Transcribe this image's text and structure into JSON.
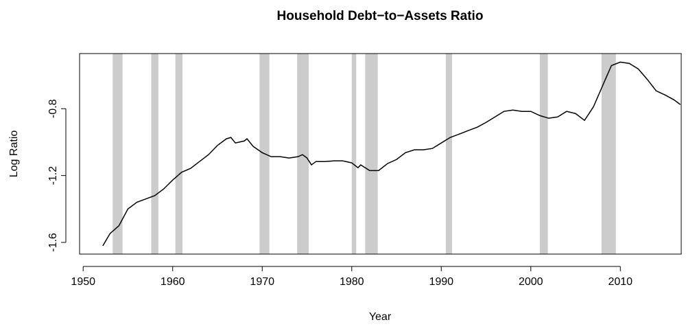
{
  "chart_data": {
    "type": "line",
    "title": "Household Debt−to−Assets Ratio",
    "x_label": "Year",
    "y_label": "Log Ratio",
    "x": [
      1952.2,
      1953,
      1954,
      1955,
      1956,
      1957,
      1958,
      1959,
      1960,
      1961,
      1962,
      1963,
      1964,
      1965,
      1966,
      1966.5,
      1967,
      1968,
      1968.3,
      1969,
      1970,
      1971,
      1972,
      1973,
      1974,
      1974.5,
      1975,
      1975.5,
      1976,
      1977,
      1978,
      1979,
      1980,
      1980.7,
      1981,
      1982,
      1983,
      1984,
      1985,
      1986,
      1987,
      1988,
      1989,
      1990,
      1991,
      1992,
      1993,
      1994,
      1995,
      1996,
      1997,
      1998,
      1999,
      2000,
      2001,
      2002,
      2003,
      2004,
      2005,
      2006,
      2007,
      2008,
      2009,
      2010,
      2011,
      2012,
      2013,
      2014,
      2015,
      2016,
      2016.7
    ],
    "series": [
      {
        "name": "Log Ratio",
        "color": "#000000",
        "values": [
          -1.62,
          -1.547,
          -1.5,
          -1.4,
          -1.36,
          -1.34,
          -1.32,
          -1.28,
          -1.227,
          -1.18,
          -1.157,
          -1.116,
          -1.075,
          -1.02,
          -0.98,
          -0.972,
          -1.005,
          -0.993,
          -0.98,
          -1.026,
          -1.063,
          -1.087,
          -1.087,
          -1.095,
          -1.087,
          -1.075,
          -1.095,
          -1.136,
          -1.116,
          -1.116,
          -1.112,
          -1.112,
          -1.124,
          -1.153,
          -1.136,
          -1.17,
          -1.17,
          -1.128,
          -1.104,
          -1.063,
          -1.046,
          -1.046,
          -1.038,
          -1.005,
          -0.972,
          -0.952,
          -0.931,
          -0.911,
          -0.882,
          -0.849,
          -0.816,
          -0.808,
          -0.816,
          -0.816,
          -0.841,
          -0.857,
          -0.849,
          -0.816,
          -0.829,
          -0.87,
          -0.788,
          -0.665,
          -0.542,
          -0.521,
          -0.529,
          -0.562,
          -0.624,
          -0.693,
          -0.718,
          -0.747,
          -0.775
        ]
      }
    ],
    "shaded_regions": [
      [
        1953.3,
        1954.4
      ],
      [
        1957.6,
        1958.4
      ],
      [
        1960.3,
        1961.1
      ],
      [
        1969.7,
        1970.8
      ],
      [
        1973.9,
        1975.2
      ],
      [
        1980.0,
        1980.5
      ],
      [
        1981.5,
        1982.9
      ],
      [
        1990.5,
        1991.2
      ],
      [
        2001.0,
        2001.9
      ],
      [
        2007.9,
        2009.5
      ]
    ],
    "shade_color": "#cccccc",
    "xlim": [
      1949.6,
      2016.8
    ],
    "ylim": [
      -1.67,
      -0.47
    ],
    "xticks": [
      1950,
      1960,
      1970,
      1980,
      1990,
      2000,
      2010
    ],
    "yticks": [
      -1.6,
      -1.2,
      -0.8
    ],
    "grid": false
  }
}
